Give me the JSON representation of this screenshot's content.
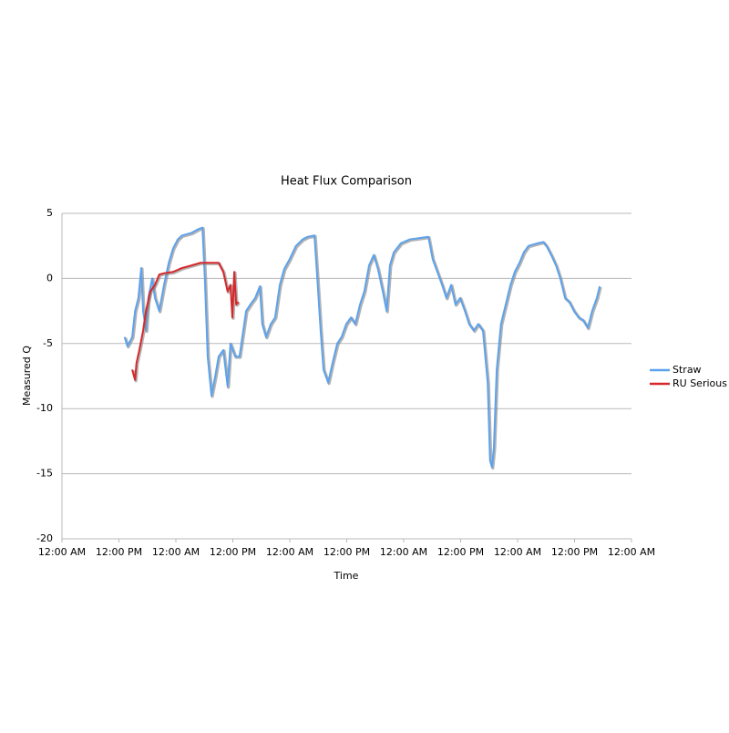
{
  "chart_data": {
    "type": "line",
    "title": "Heat Flux Comparison",
    "x_label": "Time",
    "y_label": "Measured Q",
    "xlim": [
      0,
      120
    ],
    "xticks": [
      {
        "value": 0,
        "label": "12:00 AM"
      },
      {
        "value": 12,
        "label": "12:00 PM"
      },
      {
        "value": 24,
        "label": "12:00 AM"
      },
      {
        "value": 36,
        "label": "12:00 PM"
      },
      {
        "value": 48,
        "label": "12:00 AM"
      },
      {
        "value": 60,
        "label": "12:00 PM"
      },
      {
        "value": 72,
        "label": "12:00 AM"
      },
      {
        "value": 84,
        "label": "12:00 PM"
      },
      {
        "value": 96,
        "label": "12:00 AM"
      },
      {
        "value": 108,
        "label": "12:00 PM"
      },
      {
        "value": 120,
        "label": "12:00 AM"
      }
    ],
    "ylim": [
      -20,
      5
    ],
    "yticks": [
      5,
      0,
      -5,
      -10,
      -15,
      -20
    ],
    "grid": true,
    "legend": "right",
    "series": [
      {
        "name": "Straw",
        "color": "#5da2ec",
        "x": [
          13.2,
          13.8,
          14.8,
          15.4,
          16.1,
          16.7,
          17.1,
          17.7,
          18.2,
          19.0,
          19.6,
          20.5,
          21.5,
          22.5,
          23.4,
          24.4,
          25.3,
          27.3,
          28.8,
          29.6,
          30.1,
          30.7,
          31.5,
          32.3,
          33.0,
          34.0,
          34.9,
          35.5,
          36.5,
          37.4,
          38.0,
          38.8,
          39.7,
          40.7,
          41.7,
          42.2,
          43.0,
          44.0,
          44.9,
          45.9,
          46.8,
          48.0,
          49.3,
          50.7,
          51.8,
          53.2,
          53.8,
          54.5,
          55.1,
          56.1,
          57.0,
          58.0,
          58.9,
          59.9,
          60.9,
          61.8,
          62.8,
          63.7,
          64.7,
          65.7,
          66.6,
          67.6,
          68.4,
          69.1,
          69.9,
          71.4,
          73.3,
          75.3,
          77.2,
          78.1,
          79.1,
          80.1,
          81.0,
          82.0,
          82.9,
          83.9,
          84.9,
          85.8,
          86.8,
          87.7,
          88.7,
          89.7,
          90.2,
          90.6,
          91.0,
          91.6,
          92.5,
          93.5,
          94.5,
          95.4,
          96.4,
          97.3,
          98.3,
          100.2,
          101.4,
          102.1,
          103.1,
          104.1,
          105.0,
          106.0,
          106.9,
          107.9,
          108.9,
          109.8,
          110.8,
          111.7,
          112.7,
          113.3
        ],
        "values": [
          -4.5,
          -5.2,
          -4.5,
          -2.5,
          -1.5,
          0.8,
          -2.5,
          -4,
          -1.5,
          0,
          -1.5,
          -2.5,
          -0.5,
          1.2,
          2.3,
          3,
          3.3,
          3.5,
          3.8,
          3.9,
          0,
          -6,
          -9,
          -7.5,
          -6,
          -5.5,
          -8.3,
          -5,
          -6,
          -6,
          -4.5,
          -2.5,
          -2,
          -1.5,
          -0.6,
          -3.5,
          -4.5,
          -3.5,
          -3,
          -0.5,
          0.7,
          1.5,
          2.5,
          3,
          3.2,
          3.3,
          0,
          -4,
          -7,
          -8,
          -6.5,
          -5,
          -4.5,
          -3.5,
          -3,
          -3.5,
          -2,
          -1,
          1,
          1.8,
          0.7,
          -1,
          -2.5,
          1,
          2,
          2.7,
          3,
          3.1,
          3.2,
          1.5,
          0.5,
          -0.5,
          -1.5,
          -0.5,
          -2,
          -1.5,
          -2.5,
          -3.5,
          -4,
          -3.5,
          -4,
          -8,
          -14,
          -14.5,
          -13,
          -7,
          -3.5,
          -2,
          -0.5,
          0.5,
          1.2,
          2,
          2.5,
          2.7,
          2.8,
          2.5,
          1.8,
          1,
          0,
          -1.5,
          -1.8,
          -2.5,
          -3,
          -3.2,
          -3.8,
          -2.5,
          -1.5,
          -0.6
        ]
      },
      {
        "name": "RU Serious",
        "color": "#d6282b",
        "x": [
          14.8,
          15.4,
          15.7,
          16.3,
          17.1,
          17.7,
          18.6,
          19.6,
          20.5,
          21.5,
          23.4,
          25.3,
          27.3,
          29.2,
          31.1,
          33.0,
          34.0,
          34.9,
          35.5,
          35.9,
          36.3,
          36.7,
          37.2
        ],
        "values": [
          -7,
          -7.8,
          -6.5,
          -5.5,
          -4,
          -2.5,
          -1,
          -0.5,
          0.3,
          0.4,
          0.5,
          0.8,
          1,
          1.2,
          1.2,
          1.2,
          0.5,
          -1,
          -0.5,
          -3,
          0.5,
          -2,
          -1.8
        ]
      }
    ]
  }
}
